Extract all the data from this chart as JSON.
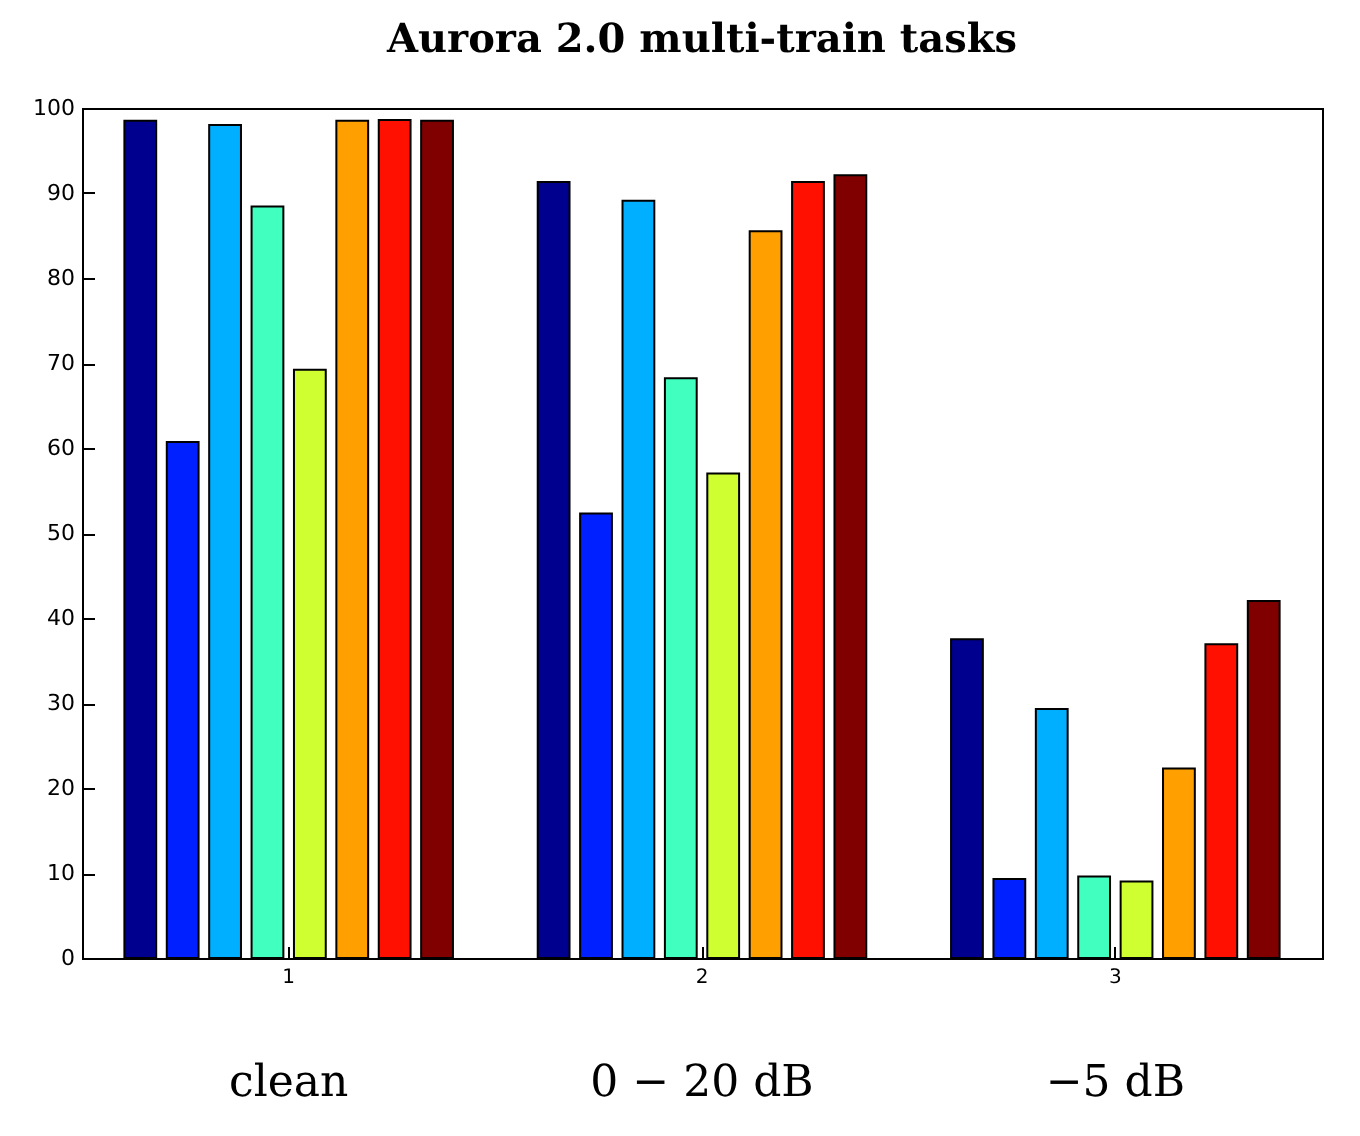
{
  "chart_data": {
    "type": "bar",
    "title": "Aurora 2.0 multi-train tasks",
    "categories": [
      "1",
      "2",
      "3"
    ],
    "series": [
      {
        "color": "#00008f",
        "values": [
          98.5,
          91.3,
          37.5
        ]
      },
      {
        "color": "#0020ff",
        "values": [
          60.7,
          52.3,
          9.3
        ]
      },
      {
        "color": "#00afff",
        "values": [
          98.0,
          89.1,
          29.3
        ]
      },
      {
        "color": "#40ffbf",
        "values": [
          88.4,
          68.2,
          9.6
        ]
      },
      {
        "color": "#cfff30",
        "values": [
          69.2,
          57.0,
          9.0
        ]
      },
      {
        "color": "#ff9f00",
        "values": [
          98.5,
          85.5,
          22.3
        ]
      },
      {
        "color": "#ff1000",
        "values": [
          98.6,
          91.3,
          36.9
        ]
      },
      {
        "color": "#800000",
        "values": [
          98.5,
          92.1,
          42.0
        ]
      }
    ],
    "ylim": [
      0,
      100
    ],
    "yticks": [
      0,
      10,
      20,
      30,
      40,
      50,
      60,
      70,
      80,
      90,
      100
    ],
    "grid": false,
    "legend": false,
    "annotations": [
      "clean",
      "0 − 20 dB",
      "−5 dB"
    ]
  }
}
